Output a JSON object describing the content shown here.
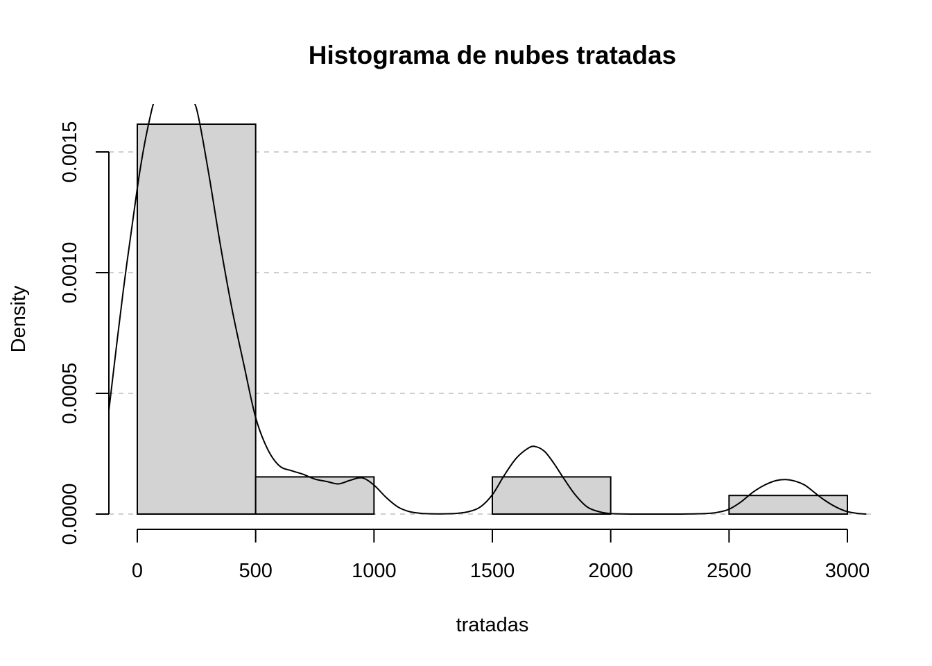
{
  "chart_data": {
    "type": "bar",
    "title": "Histograma de nubes tratadas",
    "xlabel": "tratadas",
    "ylabel": "Density",
    "xlim": [
      -120,
      3080
    ],
    "ylim": [
      0,
      0.0016
    ],
    "x_ticks": [
      0,
      500,
      1000,
      1500,
      2000,
      2500,
      3000
    ],
    "x_tick_labels": [
      "0",
      "500",
      "1000",
      "1500",
      "2000",
      "2500",
      "3000"
    ],
    "y_ticks": [
      0,
      0.0005,
      0.001,
      0.0015
    ],
    "y_tick_labels": [
      "0.0000",
      "0.0005",
      "0.0010",
      "0.0015"
    ],
    "grid": "horizontal dashed",
    "bins": [
      {
        "from": 0,
        "to": 500,
        "density": 0.001615
      },
      {
        "from": 500,
        "to": 1000,
        "density": 0.000154
      },
      {
        "from": 1000,
        "to": 1500,
        "density": 0
      },
      {
        "from": 1500,
        "to": 2000,
        "density": 0.000154
      },
      {
        "from": 2000,
        "to": 2500,
        "density": 0
      },
      {
        "from": 2500,
        "to": 3000,
        "density": 7.7e-05
      }
    ],
    "density_curve": {
      "x": [
        -120,
        -60,
        0,
        30,
        60,
        75,
        100,
        140,
        180,
        215,
        250,
        300,
        350,
        400,
        450,
        500,
        550,
        600,
        650,
        700,
        750,
        800,
        850,
        900,
        950,
        1000,
        1050,
        1100,
        1150,
        1200,
        1250,
        1300,
        1350,
        1400,
        1450,
        1500,
        1550,
        1600,
        1650,
        1680,
        1720,
        1760,
        1800,
        1850,
        1900,
        1950,
        2000,
        2100,
        2200,
        2300,
        2400,
        2450,
        2500,
        2550,
        2600,
        2650,
        2700,
        2740,
        2780,
        2820,
        2860,
        2900,
        2950,
        3000,
        3050,
        3080
      ],
      "y": [
        0.00043,
        0.00092,
        0.00135,
        0.00153,
        0.00167,
        0.00172,
        0.00178,
        0.00181,
        0.0018,
        0.00172,
        0.00168,
        0.00142,
        0.00112,
        0.00085,
        0.00062,
        0.0004,
        0.00027,
        0.0002,
        0.00018,
        0.000165,
        0.000145,
        0.000135,
        0.000125,
        0.00014,
        0.00015,
        0.00012,
        7e-05,
        3e-05,
        1e-05,
        3e-06,
        1e-06,
        1e-06,
        3e-06,
        1e-05,
        3e-05,
        8e-05,
        0.00016,
        0.00023,
        0.000272,
        0.00028,
        0.00026,
        0.00021,
        0.00015,
        8e-05,
        3e-05,
        1e-05,
        2e-06,
        0,
        0,
        0,
        2e-06,
        7e-06,
        2e-05,
        5e-05,
        9e-05,
        0.00012,
        0.000139,
        0.000143,
        0.000136,
        0.00012,
        9e-05,
        6e-05,
        3e-05,
        1e-05,
        2e-06,
        0
      ]
    }
  }
}
